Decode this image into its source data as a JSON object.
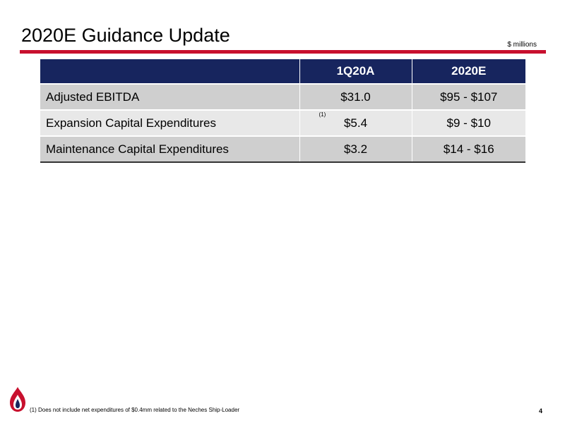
{
  "title": "2020E Guidance Update",
  "units_note": "$ millions",
  "table": {
    "headers": [
      "",
      "1Q20A",
      "2020E"
    ],
    "rows": [
      {
        "label": "Adjusted EBITDA",
        "q1": "$31.0",
        "fy": "$95 - $107",
        "marker": ""
      },
      {
        "label": "Expansion Capital Expenditures",
        "q1": "$5.4",
        "fy": "$9 - $10",
        "marker": "(1)"
      },
      {
        "label": "Maintenance Capital Expenditures",
        "q1": "$3.2",
        "fy": "$14 - $16",
        "marker": ""
      }
    ]
  },
  "footnote": "(1) Does not include net expenditures of $0.4mm related to the Neches Ship-Loader",
  "page_number": "4",
  "colors": {
    "accent": "#C8102E",
    "header": "#17255E",
    "row_dark": "#CFCFCF",
    "row_light": "#E8E8E8"
  },
  "logo": {
    "icon": "flame-logo-icon"
  }
}
